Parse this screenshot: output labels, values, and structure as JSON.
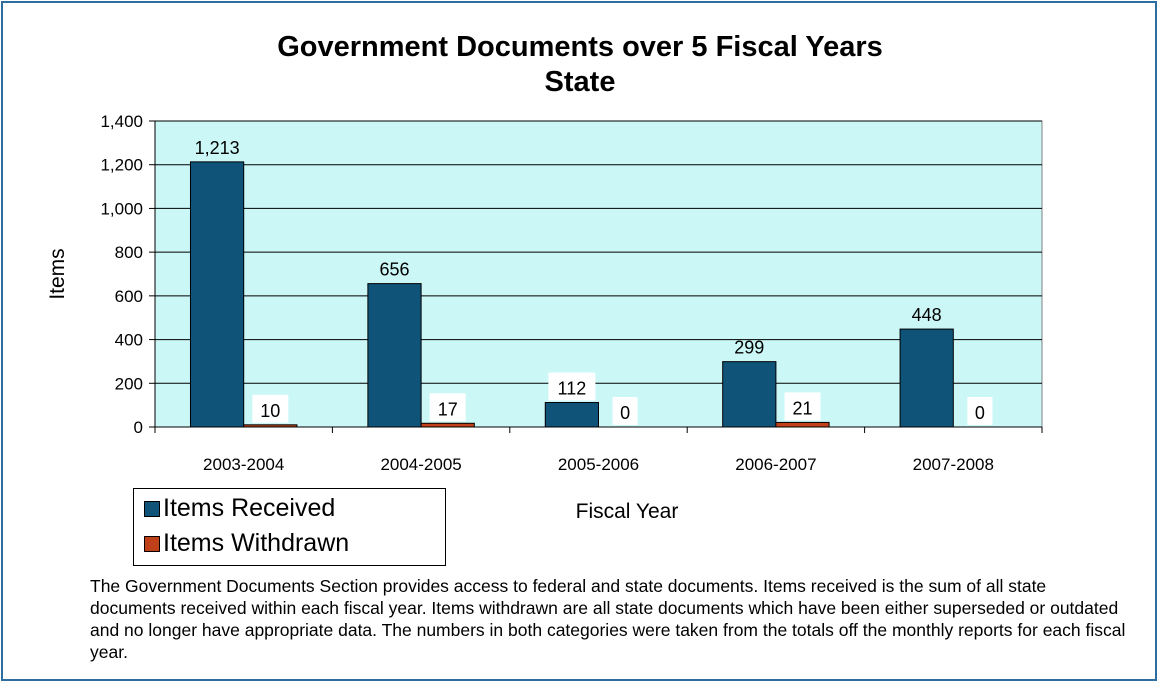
{
  "chart_data": {
    "type": "bar",
    "title": "Government Documents over 5 Fiscal Years",
    "subtitle": "State",
    "xlabel": "Fiscal Year",
    "ylabel": "Items",
    "categories": [
      "2003-2004",
      "2004-2005",
      "2005-2006",
      "2006-2007",
      "2007-2008"
    ],
    "series": [
      {
        "name": "Items Received",
        "values": [
          1213,
          656,
          112,
          299,
          448
        ],
        "color": "#0f5478"
      },
      {
        "name": "Items Withdrawn",
        "values": [
          10,
          17,
          0,
          21,
          0
        ],
        "color": "#c0401a"
      }
    ],
    "data_labels": {
      "Items Received": [
        "1,213",
        "656",
        "112",
        "299",
        "448"
      ],
      "Items Withdrawn": [
        "10",
        "17",
        "0",
        "21",
        "0"
      ]
    },
    "ylim": [
      0,
      1400
    ],
    "yticks": [
      0,
      200,
      400,
      600,
      800,
      1000,
      1200,
      1400
    ],
    "ytick_labels": [
      "0",
      "200",
      "400",
      "600",
      "800",
      "1,000",
      "1,200",
      "1,400"
    ],
    "grid": true,
    "plot_background": "#ccf7f7",
    "legend_position": "bottom-left"
  },
  "caption": "The Government Documents Section provides access to federal and state documents.  Items received is the sum of all state documents received within each fiscal year.  Items withdrawn are all state documents which have been either superseded or outdated and no longer have appropriate data.  The numbers in both categories were taken from the totals off the monthly reports for each fiscal year."
}
